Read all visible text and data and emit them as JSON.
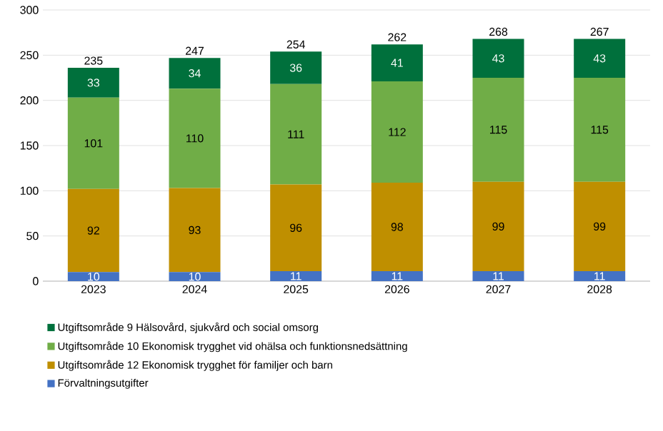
{
  "chart_data": {
    "type": "bar",
    "stacked": true,
    "categories": [
      "2023",
      "2024",
      "2025",
      "2026",
      "2027",
      "2028"
    ],
    "series": [
      {
        "name": "Förvaltningsutgifter",
        "color": "#4472c4",
        "values": [
          10,
          10,
          11,
          11,
          11,
          11
        ],
        "value_labels": [
          "10",
          "10",
          "11",
          "11",
          "11",
          "11"
        ]
      },
      {
        "name": "Utgiftsområde 12 Ekonomisk trygghet för familjer och barn",
        "color": "#bf8f00",
        "values": [
          92,
          93,
          96,
          98,
          99,
          99
        ],
        "value_labels": [
          "92",
          "93",
          "96",
          "98",
          "99",
          "99"
        ]
      },
      {
        "name": "Utgiftsområde 10 Ekonomisk trygghet vid ohälsa och funktionsnedsättning",
        "color": "#70ad47",
        "values": [
          101,
          110,
          111,
          112,
          115,
          115
        ],
        "value_labels": [
          "101",
          "110",
          "111",
          "112",
          "115",
          "115"
        ]
      },
      {
        "name": "Utgiftsområde 9 Hälsovård, sjukvård och social omsorg",
        "color": "#00703c",
        "values": [
          33,
          34,
          36,
          41,
          43,
          43
        ],
        "value_labels": [
          "33",
          "34",
          "36",
          "41",
          "43",
          "43"
        ]
      }
    ],
    "totals": [
      "235",
      "247",
      "254",
      "262",
      "268",
      "267"
    ],
    "ylim": [
      0,
      300
    ],
    "yticks": [
      0,
      50,
      100,
      150,
      200,
      250,
      300
    ],
    "grid": "y",
    "legend": "bottom"
  }
}
